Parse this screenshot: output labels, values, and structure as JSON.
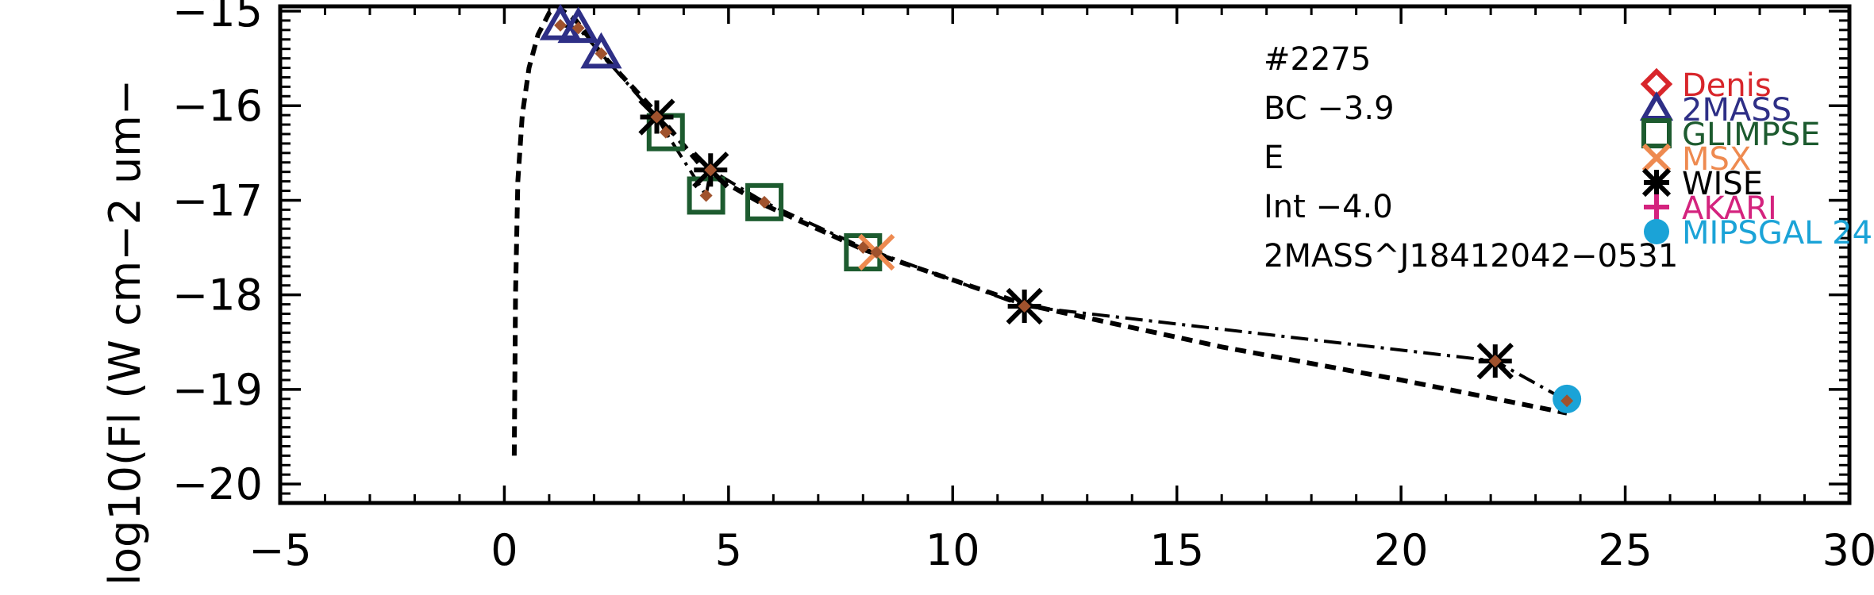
{
  "chart_data": {
    "type": "scatter",
    "title": "",
    "xlabel": "",
    "ylabel": "log10(Fl (W cm−2 um−",
    "xlim": [
      -5,
      30
    ],
    "ylim": [
      -20.2,
      -14.95
    ],
    "x_ticks": [
      -5,
      0,
      5,
      10,
      15,
      20,
      25,
      30
    ],
    "x_tick_labels": [
      "−5",
      "0",
      "5",
      "10",
      "15",
      "20",
      "25",
      "30"
    ],
    "y_ticks": [
      -20,
      -19,
      -18,
      -17,
      -16,
      -15
    ],
    "y_tick_labels": [
      "−20",
      "−19",
      "−18",
      "−17",
      "−16",
      "−15"
    ],
    "annotations": [
      "#2275",
      "BC  −3.9",
      "E",
      "Int  −4.0",
      "2MASS^J18412042−0531"
    ],
    "legend": {
      "position": "right",
      "entries": [
        {
          "name": "Denis",
          "marker": "diamond",
          "color": "#d8262b"
        },
        {
          "name": "2MASS",
          "marker": "triangle",
          "color": "#2e2f86"
        },
        {
          "name": "GLIMPSE",
          "marker": "square",
          "color": "#1d5b2f"
        },
        {
          "name": "MSX",
          "marker": "x",
          "color": "#ee8a50"
        },
        {
          "name": "WISE",
          "marker": "asterisk",
          "color": "#000000"
        },
        {
          "name": "AKARI",
          "marker": "plus",
          "color": "#d4237e"
        },
        {
          "name": "MIPSGAL 24",
          "marker": "circle",
          "color": "#1ba3d7"
        }
      ]
    },
    "series": [
      {
        "marker": "triangle",
        "color": "#2e2f86",
        "points": [
          [
            1.25,
            -15.15
          ],
          [
            1.65,
            -15.18
          ],
          [
            2.16,
            -15.45
          ]
        ]
      },
      {
        "marker": "square",
        "color": "#1d5b2f",
        "points": [
          [
            3.6,
            -16.28
          ],
          [
            4.5,
            -16.95
          ],
          [
            5.8,
            -17.02
          ],
          [
            8.0,
            -17.55
          ]
        ]
      },
      {
        "marker": "x",
        "color": "#ee8a50",
        "points": [
          [
            8.3,
            -17.55
          ]
        ]
      },
      {
        "marker": "asterisk",
        "color": "#000000",
        "points": [
          [
            3.4,
            -16.12
          ],
          [
            4.6,
            -16.68
          ],
          [
            11.6,
            -18.12
          ],
          [
            22.1,
            -18.7
          ]
        ]
      },
      {
        "marker": "circle",
        "color": "#1ba3d7",
        "points": [
          [
            23.7,
            -19.1
          ]
        ]
      },
      {
        "marker": "dot",
        "color": "#a0522d",
        "points": [
          [
            1.25,
            -15.15
          ],
          [
            1.65,
            -15.18
          ],
          [
            2.16,
            -15.45
          ],
          [
            3.4,
            -16.12
          ],
          [
            3.6,
            -16.28
          ],
          [
            4.5,
            -16.95
          ],
          [
            4.6,
            -16.68
          ],
          [
            5.8,
            -17.02
          ],
          [
            8.0,
            -17.5
          ],
          [
            8.3,
            -17.55
          ],
          [
            11.6,
            -18.12
          ],
          [
            22.1,
            -18.7
          ],
          [
            23.7,
            -19.12
          ]
        ]
      }
    ],
    "sed_line": [
      [
        1.25,
        -15.15
      ],
      [
        1.65,
        -15.18
      ],
      [
        2.16,
        -15.45
      ],
      [
        3.4,
        -16.12
      ],
      [
        3.6,
        -16.28
      ],
      [
        4.5,
        -16.95
      ],
      [
        4.6,
        -16.68
      ],
      [
        5.8,
        -17.02
      ],
      [
        8.0,
        -17.5
      ],
      [
        8.3,
        -17.55
      ],
      [
        11.6,
        -18.12
      ],
      [
        22.1,
        -18.7
      ],
      [
        23.7,
        -19.12
      ]
    ],
    "model_curve": [
      [
        0.22,
        -19.7
      ],
      [
        0.25,
        -18.0
      ],
      [
        0.3,
        -16.8
      ],
      [
        0.4,
        -16.1
      ],
      [
        0.55,
        -15.6
      ],
      [
        0.75,
        -15.25
      ],
      [
        1.0,
        -15.02
      ],
      [
        1.2,
        -14.96
      ],
      [
        1.6,
        -15.1
      ],
      [
        2.16,
        -15.45
      ],
      [
        3.4,
        -16.08
      ],
      [
        4.5,
        -16.7
      ],
      [
        5.8,
        -17.05
      ],
      [
        8.0,
        -17.52
      ],
      [
        11.6,
        -18.1
      ],
      [
        16.0,
        -18.55
      ],
      [
        20.0,
        -18.9
      ],
      [
        23.7,
        -19.25
      ]
    ]
  }
}
